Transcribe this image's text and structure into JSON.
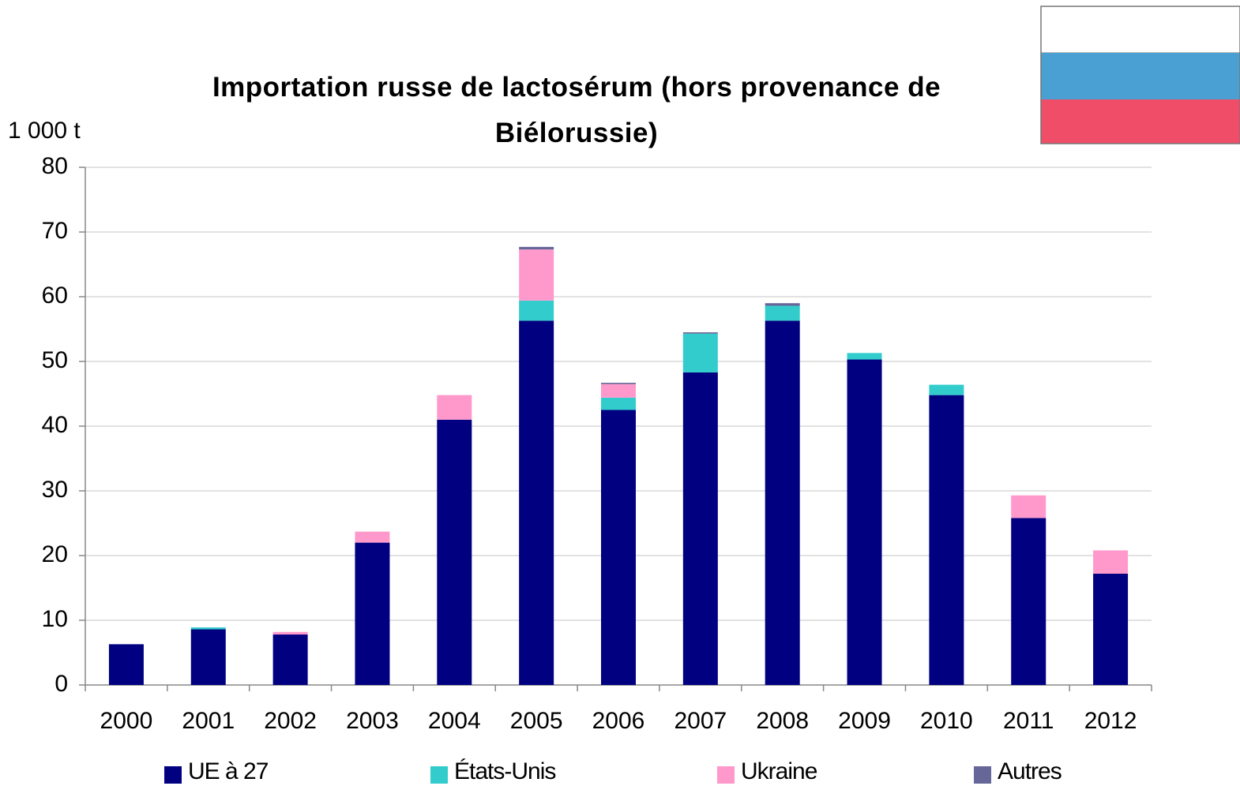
{
  "chart_data": {
    "type": "stacked_bar",
    "title": "Importation russe de lactosérum (hors provenance de Biélorussie)",
    "y_label": "1 000 t",
    "categories": [
      "2000",
      "2001",
      "2002",
      "2003",
      "2004",
      "2005",
      "2006",
      "2007",
      "2008",
      "2009",
      "2010",
      "2011",
      "2012"
    ],
    "series": [
      {
        "name": "UE à 27",
        "color": "#000080",
        "values": [
          6.3,
          8.6,
          7.8,
          22.0,
          41.0,
          56.3,
          42.5,
          48.3,
          56.3,
          50.3,
          44.8,
          25.8,
          17.2
        ]
      },
      {
        "name": "États-Unis",
        "color": "#33cccc",
        "values": [
          0,
          0.3,
          0,
          0,
          0,
          3.1,
          1.9,
          6.0,
          2.3,
          1.0,
          1.6,
          0,
          0
        ]
      },
      {
        "name": "Ukraine",
        "color": "#ff99cc",
        "values": [
          0,
          0,
          0.4,
          1.7,
          3.8,
          7.9,
          2.1,
          0,
          0,
          0,
          0,
          3.5,
          3.6
        ]
      },
      {
        "name": "Autres",
        "color": "#666699",
        "values": [
          0,
          0,
          0,
          0,
          0,
          0.4,
          0.2,
          0.2,
          0.4,
          0,
          0,
          0,
          0
        ]
      }
    ],
    "ylim": [
      0,
      80
    ],
    "yticks": [
      0,
      10,
      20,
      30,
      40,
      50,
      60,
      70,
      80
    ],
    "grid": true
  }
}
